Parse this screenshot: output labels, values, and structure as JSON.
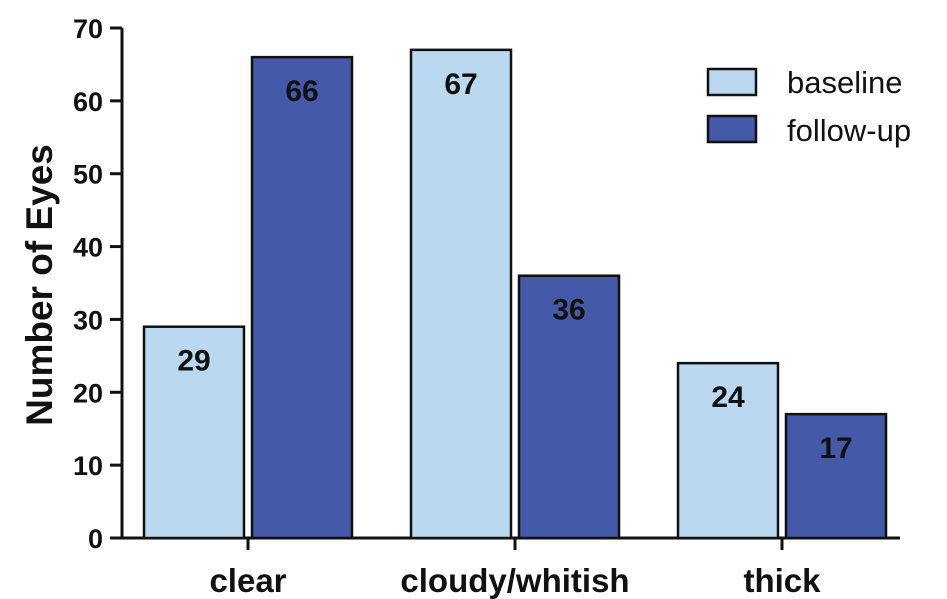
{
  "chart_data": {
    "type": "bar",
    "title": "",
    "xlabel": "",
    "ylabel": "Number of Eyes",
    "ylim": [
      0,
      70
    ],
    "yticks": [
      0,
      10,
      20,
      30,
      40,
      50,
      60,
      70
    ],
    "categories": [
      "clear",
      "cloudy/whitish",
      "thick"
    ],
    "series": [
      {
        "name": "baseline",
        "values": [
          29,
          67,
          24
        ],
        "color": "#bad8ef"
      },
      {
        "name": "follow-up",
        "values": [
          66,
          36,
          17
        ],
        "color": "#4459a8"
      }
    ],
    "data_labels": true,
    "legend_position": "top-right",
    "grid": false
  }
}
